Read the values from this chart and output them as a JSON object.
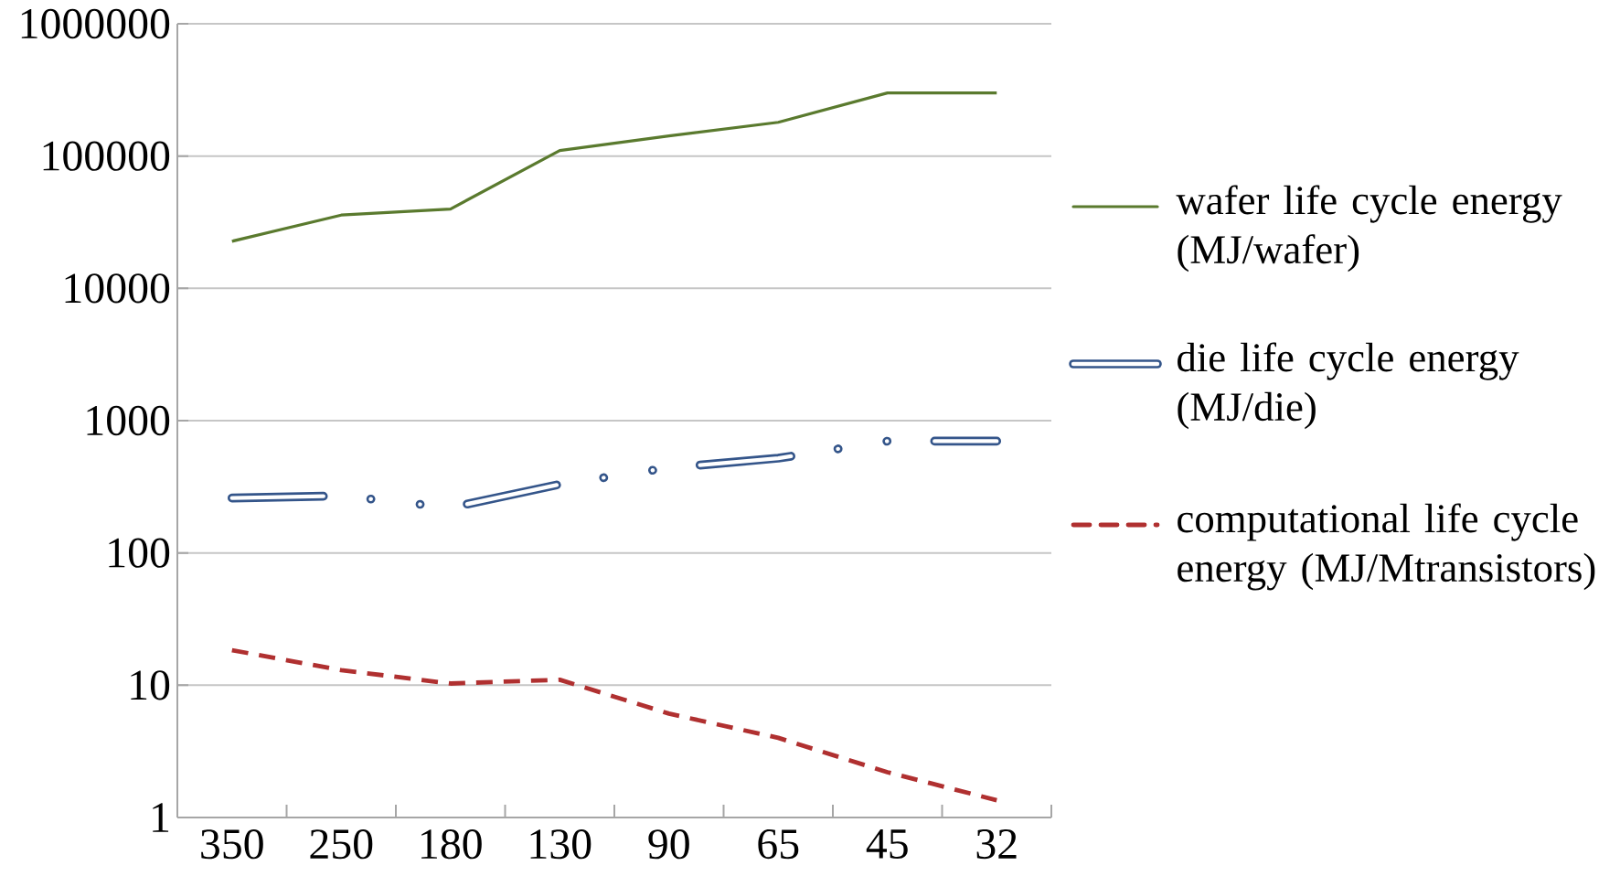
{
  "chart_data": {
    "type": "line",
    "categories": [
      "350",
      "250",
      "180",
      "130",
      "90",
      "65",
      "45",
      "32"
    ],
    "series": [
      {
        "name": "wafer life cycle energy (MJ/wafer)",
        "color": "#5a7a2e",
        "line_style": "solid",
        "values": [
          22700,
          35800,
          39800,
          110000,
          142000,
          180000,
          300000,
          300000
        ]
      },
      {
        "name": "die life cycle energy (MJ/die)",
        "color": "#34558a",
        "line_style": "dashdotdot",
        "values": [
          260,
          270,
          220,
          330,
          440,
          520,
          700,
          700
        ]
      },
      {
        "name": "computational life cycle energy (MJ/Mtransistors)",
        "color": "#b03030",
        "line_style": "dashed",
        "values": [
          18.4,
          13,
          10.3,
          11,
          6.1,
          4,
          2.2,
          1.35
        ]
      }
    ],
    "log": "y",
    "ylim": [
      1,
      1000000
    ],
    "yticks": [
      1,
      10,
      100,
      1000,
      10000,
      100000,
      1000000
    ],
    "grid": "y",
    "legend": "right",
    "marker": "none"
  }
}
